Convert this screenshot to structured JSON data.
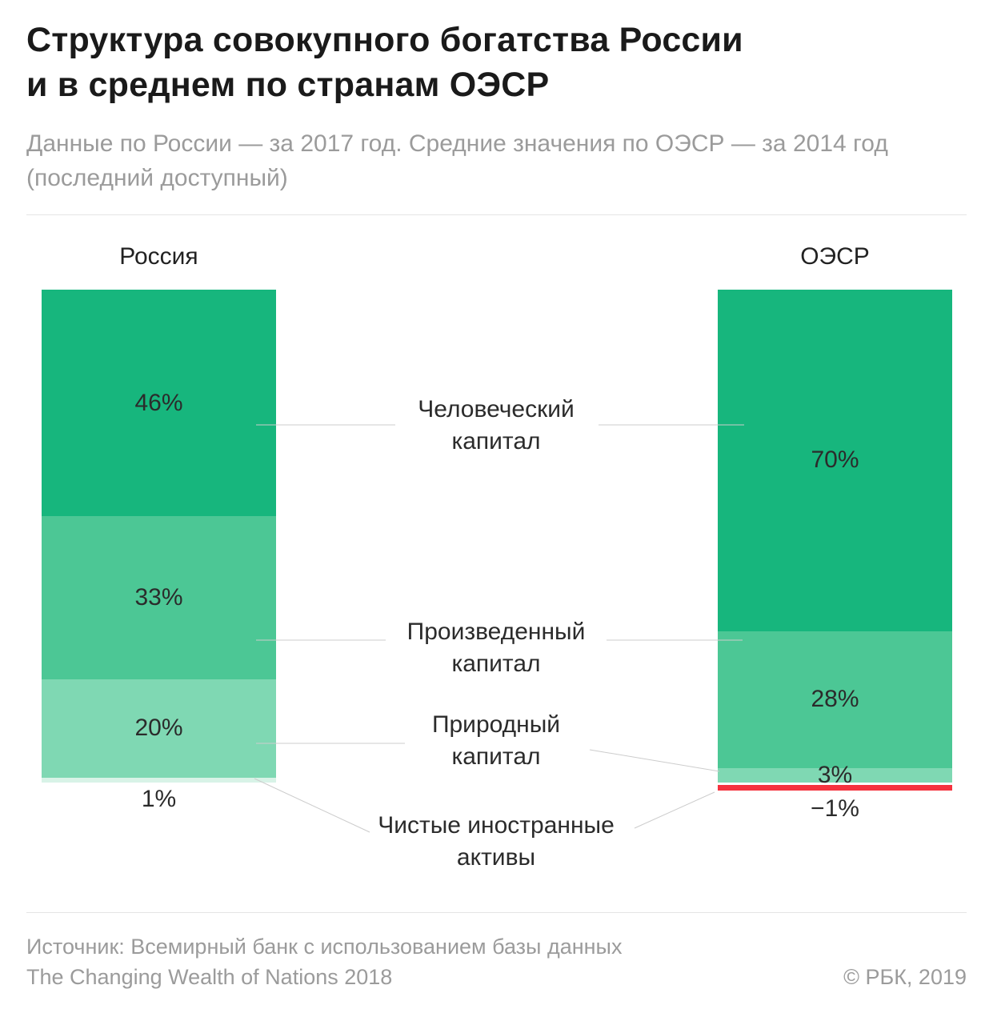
{
  "header": {
    "title_lines": [
      "Структура совокупного богатства России",
      "и в среднем по странам ОЭСР"
    ],
    "subtitle_lines": [
      "Данные по России — за 2017 год. Средние значения по ОЭСР — за 2014 год",
      "(последний доступный)"
    ]
  },
  "chart_data": {
    "type": "bar",
    "variant": "stacked-percentage",
    "title": "Структура совокупного богатства России и в среднем по странам ОЭСР",
    "subtitle": "Данные по России — за 2017 год. Средние значения по ОЭСР — за 2014 год (последний доступный)",
    "unit": "%",
    "categories": [
      "Россия",
      "ОЭСР"
    ],
    "series": [
      {
        "id": "human-capital",
        "name": "Человеческий капитал",
        "name_lines": [
          "Человеческий",
          "капитал"
        ],
        "values": [
          46,
          70
        ],
        "color": "#17b67d"
      },
      {
        "id": "produced-capital",
        "name": "Произведенный капитал",
        "name_lines": [
          "Произведенный",
          "капитал"
        ],
        "values": [
          33,
          28
        ],
        "color": "#4cc795"
      },
      {
        "id": "natural-capital",
        "name": "Природный капитал",
        "name_lines": [
          "Природный",
          "капитал"
        ],
        "values": [
          20,
          3
        ],
        "color": "#7fd8b3"
      },
      {
        "id": "net-foreign-assets",
        "name": "Чистые иностранные активы",
        "name_lines": [
          "Чистые иностранные",
          "активы"
        ],
        "values": [
          1,
          -1
        ],
        "colors": [
          "#d8f3e7",
          "#f5323e"
        ]
      }
    ],
    "source": "Источник: Всемирный банк с использованием базы данных The Changing Wealth of Nations 2018"
  },
  "footer": {
    "source_lines": [
      "Источник: Всемирный банк  с использованием базы данных",
      "The Changing Wealth of Nations 2018"
    ],
    "copyright": "© РБК, 2019"
  },
  "colors": {
    "accent_green_dark": "#17b67d",
    "accent_green_medium": "#4cc795",
    "accent_green_light": "#7fd8b3",
    "accent_green_pale": "#d8f3e7",
    "negative_red": "#f5323e",
    "text_primary": "#1a1a1a",
    "text_secondary": "#9b9b9b",
    "divider": "#e4e4e4"
  }
}
